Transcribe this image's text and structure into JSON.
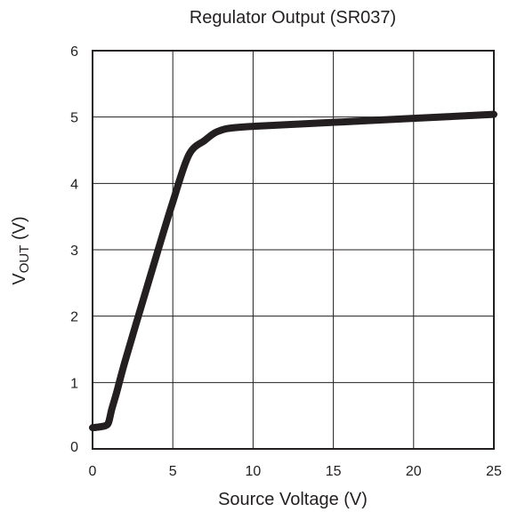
{
  "chart_data": {
    "type": "line",
    "title": "Regulator Output (SR037)",
    "xlabel": "Source Voltage (V)",
    "ylabel_main": "V",
    "ylabel_sub": "OUT",
    "ylabel_unit": " (V)",
    "xlim": [
      0,
      25
    ],
    "ylim": [
      0,
      6
    ],
    "x_ticks": [
      0,
      5,
      10,
      15,
      20,
      25
    ],
    "y_ticks": [
      0,
      1,
      2,
      3,
      4,
      5,
      6
    ],
    "grid": true,
    "colors": {
      "line": "#231f20",
      "text": "#231f20",
      "background": "#ffffff"
    },
    "series": [
      {
        "x": [
          0,
          0.4,
          0.8,
          1.0,
          1.2,
          1.5,
          2.0,
          3.0,
          4.0,
          5.0,
          6.0,
          7.0,
          7.6,
          8.0,
          8.5,
          10.0,
          15.0,
          20.0,
          25.0
        ],
        "y": [
          0.32,
          0.33,
          0.35,
          0.4,
          0.6,
          0.85,
          1.3,
          2.12,
          2.93,
          3.72,
          4.43,
          4.65,
          4.76,
          4.8,
          4.83,
          4.86,
          4.92,
          4.98,
          5.04
        ]
      }
    ]
  }
}
